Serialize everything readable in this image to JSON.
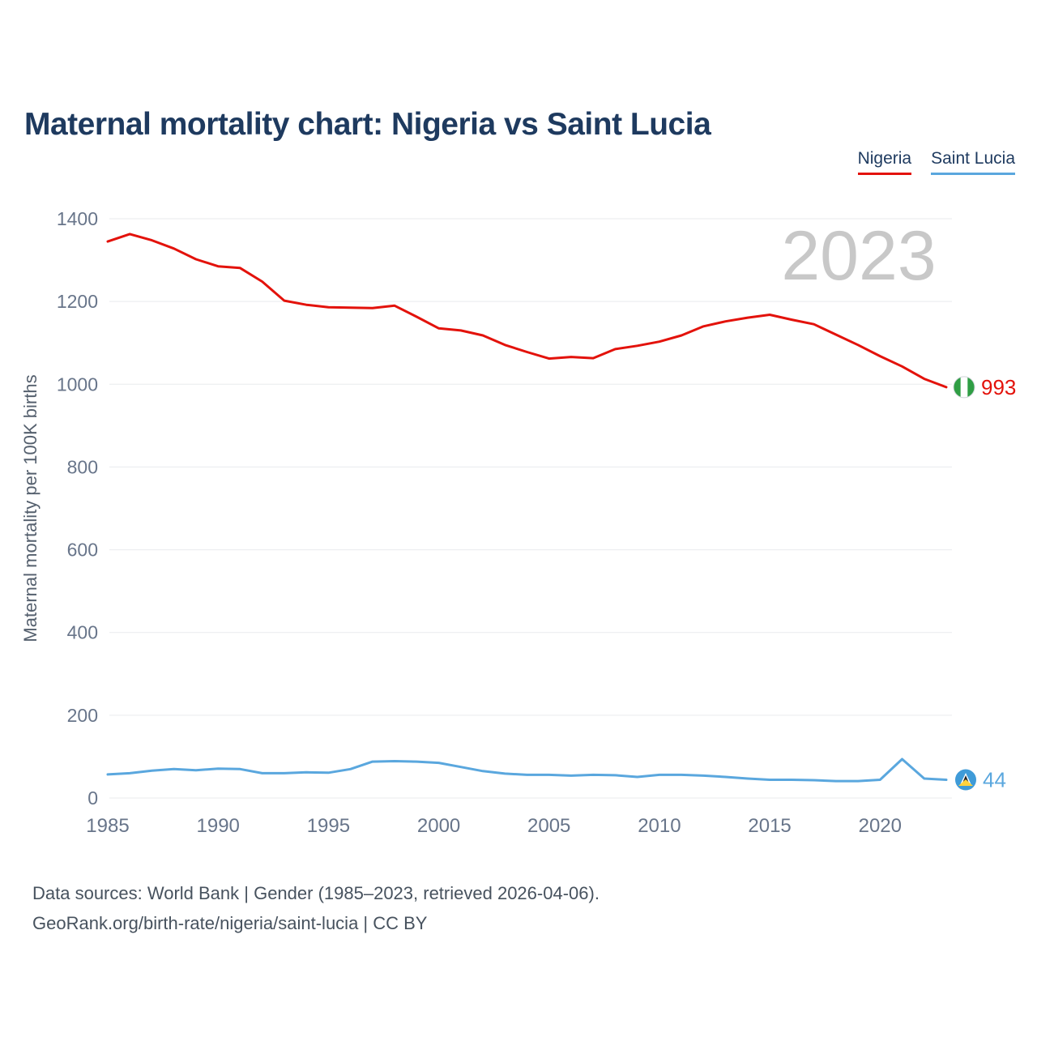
{
  "page": {
    "title": "Maternal mortality chart: Nigeria vs Saint Lucia",
    "watermark": "2023",
    "footer_line1": "Data sources: World Bank | Gender (1985–2023, retrieved 2026-04-06).",
    "footer_line2": "GeoRank.org/birth-rate/nigeria/saint-lucia | CC BY"
  },
  "legend": {
    "items": [
      {
        "label": "Nigeria",
        "color": "#e3120b"
      },
      {
        "label": "Saint Lucia",
        "color": "#5aa7de"
      }
    ]
  },
  "chart_data": {
    "type": "line",
    "title": "Maternal mortality chart: Nigeria vs Saint Lucia",
    "ylabel": "Maternal mortality per 100K births",
    "xlabel": "",
    "grid": true,
    "legend_position": "top-right",
    "watermark": "2023",
    "ylim": [
      0,
      1400
    ],
    "yticks": [
      0,
      200,
      400,
      600,
      800,
      1000,
      1200,
      1400
    ],
    "xticks": [
      1985,
      1990,
      1995,
      2000,
      2005,
      2010,
      2015,
      2020
    ],
    "x": [
      1985,
      1986,
      1987,
      1988,
      1989,
      1990,
      1991,
      1992,
      1993,
      1994,
      1995,
      1996,
      1997,
      1998,
      1999,
      2000,
      2001,
      2002,
      2003,
      2004,
      2005,
      2006,
      2007,
      2008,
      2009,
      2010,
      2011,
      2012,
      2013,
      2014,
      2015,
      2016,
      2017,
      2018,
      2019,
      2020,
      2021,
      2022,
      2023
    ],
    "series": [
      {
        "name": "Nigeria",
        "color": "#e3120b",
        "end_label": "993",
        "end_marker": "nigeria-flag-icon",
        "flag_colors": {
          "green": "#2f9e44",
          "white": "#ffffff"
        },
        "values": [
          1345,
          1363,
          1348,
          1328,
          1302,
          1285,
          1281,
          1248,
          1202,
          1192,
          1186,
          1185,
          1184,
          1190,
          1163,
          1135,
          1130,
          1118,
          1095,
          1078,
          1062,
          1066,
          1063,
          1085,
          1093,
          1103,
          1118,
          1140,
          1152,
          1161,
          1168,
          1156,
          1145,
          1120,
          1095,
          1068,
          1043,
          1013,
          993
        ]
      },
      {
        "name": "Saint Lucia",
        "color": "#5aa7de",
        "end_label": "44",
        "end_marker": "saint-lucia-flag-icon",
        "flag_colors": {
          "blue": "#3f9bd8",
          "white": "#ffffff",
          "black": "#222222",
          "yellow": "#ffd23e"
        },
        "values": [
          57,
          60,
          66,
          70,
          67,
          71,
          70,
          60,
          60,
          62,
          61,
          70,
          88,
          89,
          88,
          85,
          75,
          65,
          59,
          56,
          56,
          54,
          56,
          55,
          51,
          56,
          56,
          54,
          51,
          47,
          44,
          44,
          43,
          41,
          41,
          44,
          94,
          47,
          44
        ]
      }
    ]
  }
}
